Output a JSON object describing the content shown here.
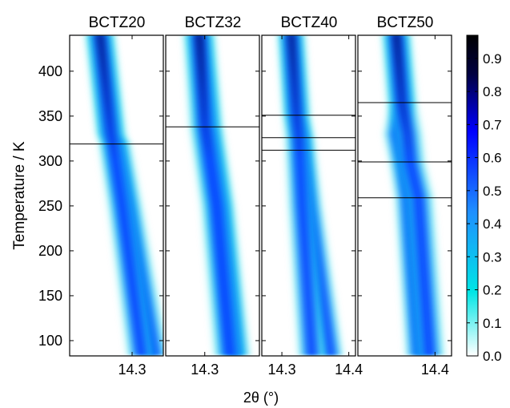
{
  "chart_data": {
    "type": "heatmap",
    "ylabel": "Temperature / K",
    "xlabel": "2θ (°)",
    "ylim": [
      83,
      440
    ],
    "y_ticks": [
      100,
      150,
      200,
      250,
      300,
      350,
      400
    ],
    "colorbar": {
      "range": [
        0.0,
        0.97
      ],
      "ticks": [
        "0.0",
        "0.1",
        "0.2",
        "0.3",
        "0.4",
        "0.5",
        "0.6",
        "0.7",
        "0.8",
        "0.9"
      ],
      "colors": [
        "#ffffff",
        "#00e5e5",
        "#1f8fff",
        "#0000ff",
        "#000040",
        "#000000"
      ]
    },
    "panels": [
      {
        "title": "BCTZ20",
        "xlim": [
          14.22,
          14.34
        ],
        "x_ticks": [
          14.3
        ],
        "x_tick_labels": [
          "14.3"
        ],
        "transitions": [
          319
        ],
        "peaks": [
          {
            "points": [
              [
                440,
                14.259
              ],
              [
                330,
                14.273
              ],
              [
                320,
                14.275
              ],
              [
                250,
                14.287
              ],
              [
                83,
                14.312
              ]
            ],
            "intensity": 0.95,
            "width": 0.004
          },
          {
            "points": [
              [
                440,
                14.259
              ],
              [
                330,
                14.273
              ],
              [
                320,
                14.28
              ],
              [
                250,
                14.295
              ],
              [
                83,
                14.328
              ]
            ],
            "intensity": 0.55,
            "width": 0.004
          }
        ]
      },
      {
        "title": "BCTZ32",
        "xlim": [
          14.25,
          14.37
        ],
        "x_ticks": [
          14.3
        ],
        "x_tick_labels": [
          "14.3"
        ],
        "transitions": [
          338
        ],
        "peaks": [
          {
            "points": [
              [
                440,
                14.293
              ],
              [
                370,
                14.298
              ],
              [
                340,
                14.3
              ],
              [
                250,
                14.315
              ],
              [
                83,
                14.332
              ]
            ],
            "intensity": 0.95,
            "width": 0.0045
          },
          {
            "points": [
              [
                440,
                14.293
              ],
              [
                340,
                14.305
              ],
              [
                250,
                14.32
              ],
              [
                83,
                14.34
              ]
            ],
            "intensity": 0.5,
            "width": 0.004
          }
        ]
      },
      {
        "title": "BCTZ40",
        "xlim": [
          14.27,
          14.41
        ],
        "x_ticks": [
          14.3,
          14.4
        ],
        "x_tick_labels": [
          "14.3",
          "14.4"
        ],
        "transitions": [
          351,
          326,
          312
        ],
        "peaks": [
          {
            "points": [
              [
                440,
                14.314
              ],
              [
                351,
                14.322
              ],
              [
                326,
                14.325
              ],
              [
                250,
                14.33
              ],
              [
                83,
                14.345
              ]
            ],
            "intensity": 0.95,
            "width": 0.0045
          },
          {
            "points": [
              [
                440,
                14.314
              ],
              [
                351,
                14.322
              ],
              [
                326,
                14.33
              ],
              [
                250,
                14.342
              ],
              [
                83,
                14.373
              ]
            ],
            "intensity": 0.5,
            "width": 0.004
          }
        ]
      },
      {
        "title": "BCTZ50",
        "xlim": [
          14.26,
          14.43
        ],
        "x_ticks": [
          14.4
        ],
        "x_tick_labels": [
          "14.4"
        ],
        "transitions": [
          365,
          299,
          259
        ],
        "peaks": [
          {
            "points": [
              [
                440,
                14.33
              ],
              [
                365,
                14.34
              ],
              [
                330,
                14.35
              ],
              [
                299,
                14.355
              ],
              [
                259,
                14.37
              ],
              [
                83,
                14.39
              ]
            ],
            "intensity": 0.95,
            "width": 0.006
          },
          {
            "points": [
              [
                440,
                14.33
              ],
              [
                365,
                14.34
              ],
              [
                330,
                14.33
              ],
              [
                299,
                14.34
              ],
              [
                259,
                14.35
              ],
              [
                83,
                14.37
              ]
            ],
            "intensity": 0.5,
            "width": 0.005
          }
        ]
      }
    ]
  }
}
